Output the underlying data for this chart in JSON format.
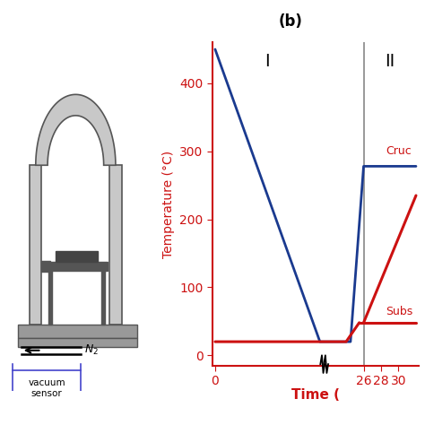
{
  "title_label": "(b)",
  "ylabel": "Temperature (°C)",
  "xlabel": "Time (",
  "ylim": [
    -15,
    460
  ],
  "yticks": [
    0,
    100,
    200,
    300,
    400
  ],
  "ytick_labels": [
    "0",
    "100",
    "200",
    "300",
    "400"
  ],
  "xtick_labels": [
    "0",
    "26",
    "28",
    "30"
  ],
  "region_I_label": "I",
  "region_II_label": "II",
  "crucible_label": "Cruc",
  "substrate_label": "Subs",
  "blue_color": "#1a3a8f",
  "red_color": "#cc1111",
  "gray_color": "#888888",
  "background_color": "#ffffff",
  "light_gray": "#c8c8c8",
  "dark_gray": "#555555",
  "mid_gray": "#999999",
  "sensor_box_color": "#4444cc"
}
